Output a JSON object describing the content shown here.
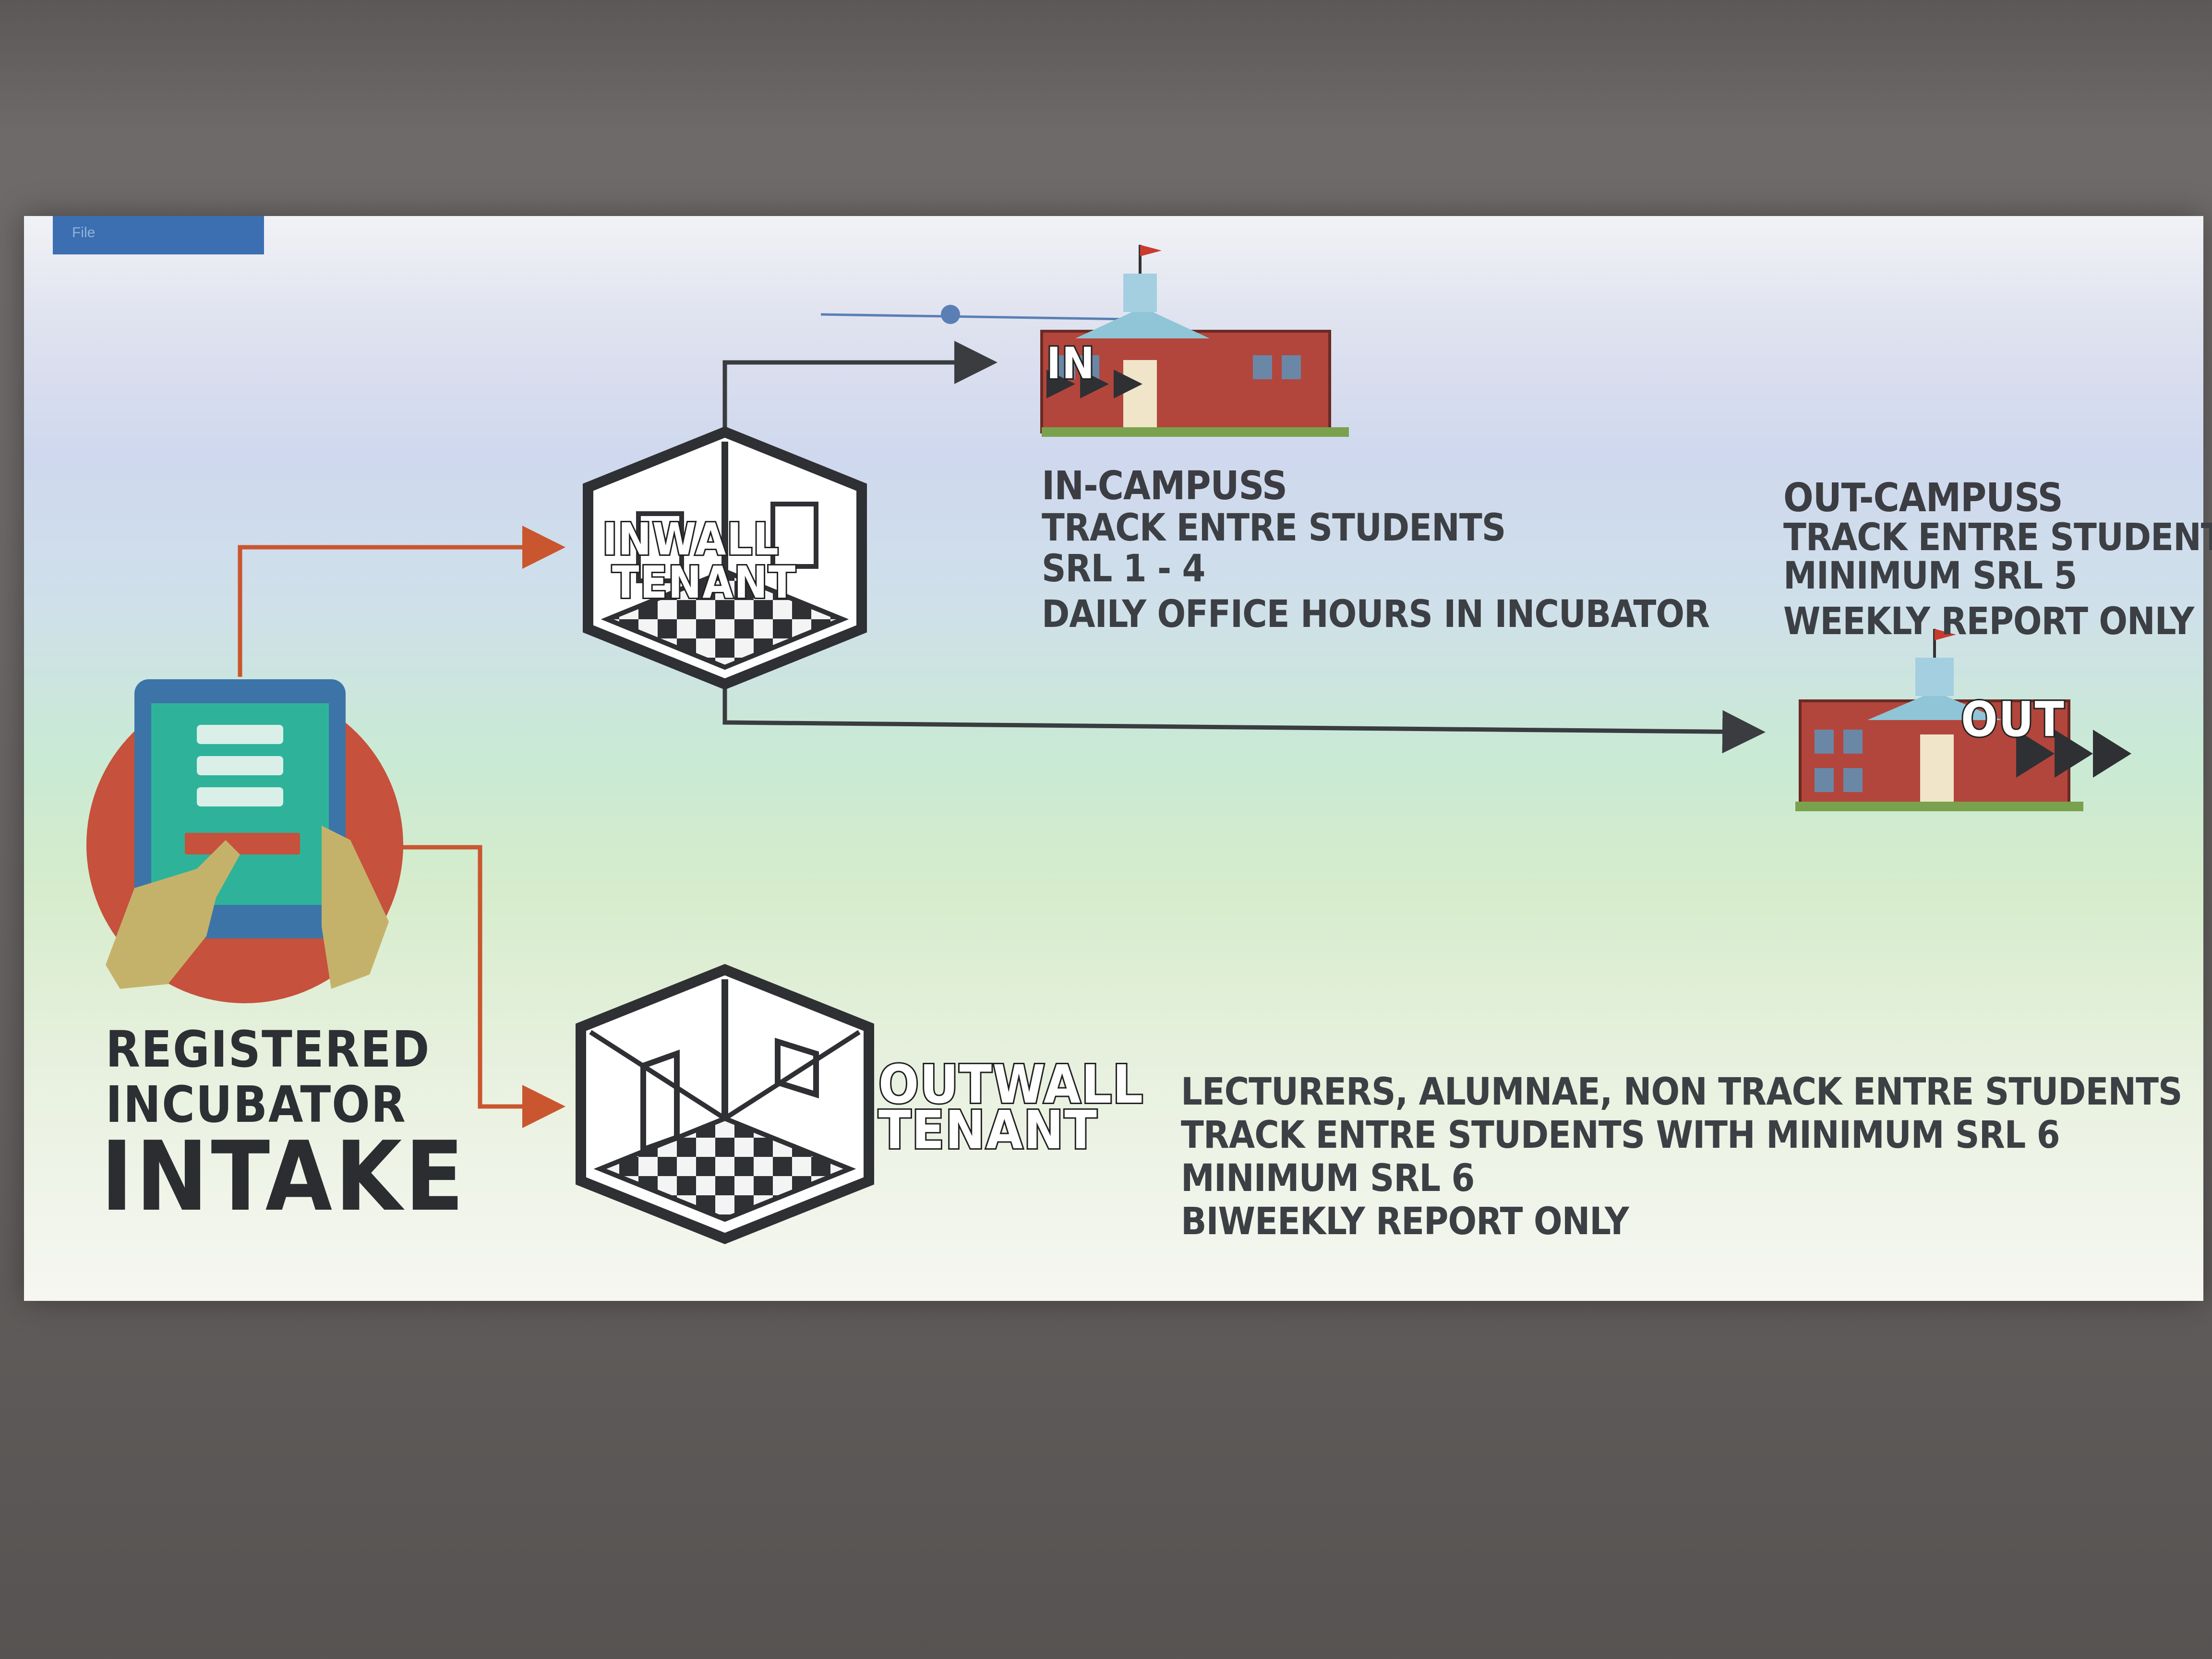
{
  "screen": {
    "toolbar_tab_label": "File"
  },
  "colors": {
    "arrow_orange": "#c9562f",
    "arrow_dark": "#3a3c40",
    "text": "#3c3f44",
    "building_red": "#b2463c",
    "tablet_frame": "#3d74a8",
    "tablet_screen": "#2eb39a",
    "circle_red": "#c6513c",
    "hand": "#c5b26a"
  },
  "diagram": {
    "intake": {
      "line1": "REGISTERED",
      "line2": "INCUBATOR",
      "line3": "INTAKE"
    },
    "inwall": {
      "line1": "INWALL",
      "line2": "TENANT"
    },
    "outwall": {
      "line1": "OUTWALL",
      "line2": "TENANT",
      "details": [
        "LECTURERS, ALUMNAE, NON TRACK ENTRE STUDENTS",
        "TRACK ENTRE STUDENTS WITH MINIMUM SRL 6",
        "MINIMUM SRL 6",
        "BIWEEKLY  REPORT ONLY"
      ]
    },
    "in_campus": {
      "title": "IN-CAMPUSS",
      "sign": "IN",
      "details": [
        "TRACK  ENTRE STUDENTS",
        "SRL 1 - 4",
        "DAILY  OFFICE HOURS IN INCUBATOR"
      ]
    },
    "out_campus": {
      "title": "OUT-CAMPUSS",
      "sign": "OUT",
      "details": [
        "TRACK  ENTRE STUDENTS",
        "MINIMUM SRL 5",
        "WEEKLY REPORT ONLY"
      ]
    }
  }
}
